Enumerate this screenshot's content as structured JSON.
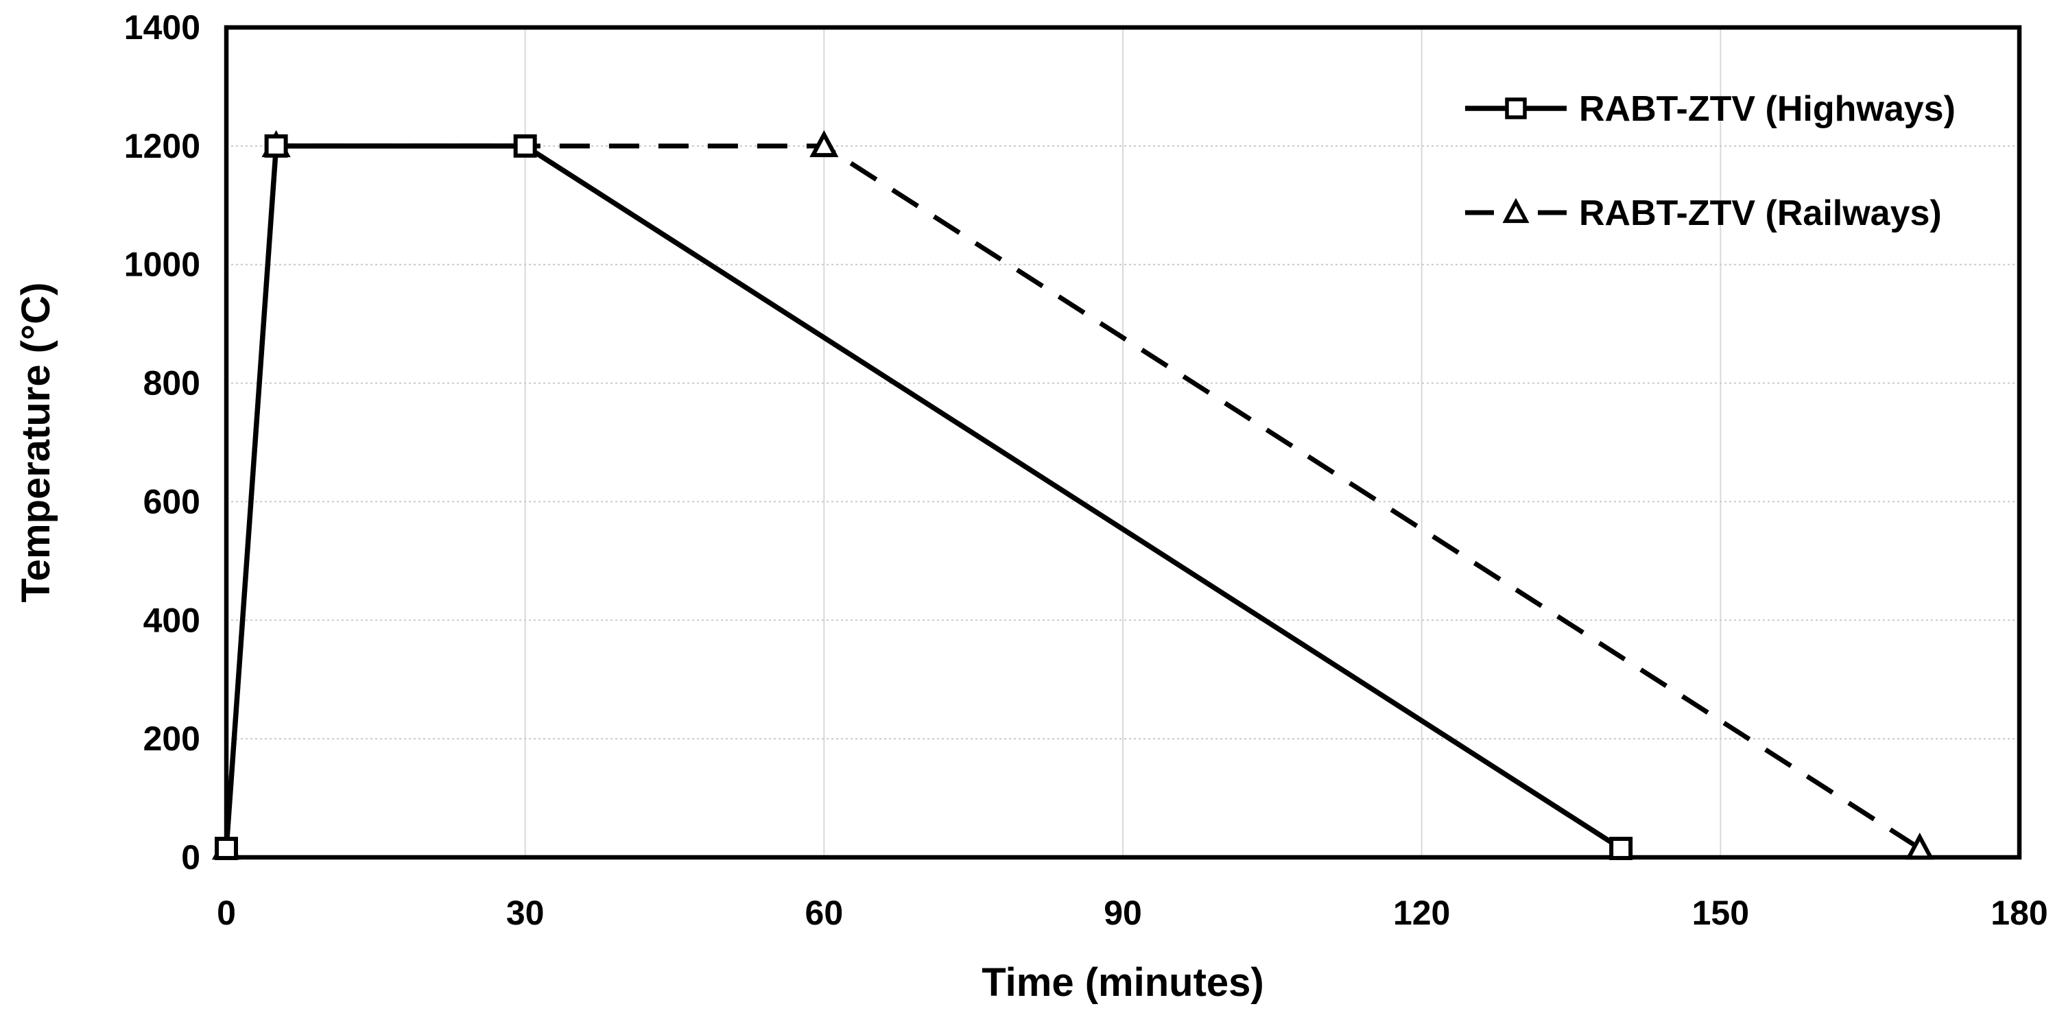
{
  "figure": {
    "background": "#ffffff"
  },
  "chart_data": {
    "type": "line",
    "title": "",
    "xlabel": "Time (minutes)",
    "ylabel": "Temperature (°C)",
    "xlim": [
      0,
      180
    ],
    "ylim": [
      0,
      1400
    ],
    "xticks": [
      0,
      30,
      60,
      90,
      120,
      150,
      180
    ],
    "yticks": [
      0,
      200,
      400,
      600,
      800,
      1000,
      1200,
      1400
    ],
    "grid": true,
    "legend": {
      "position": "top-right-inside",
      "entries": [
        "RABT-ZTV (Highways)",
        "RABT-ZTV (Railways)"
      ]
    },
    "series": [
      {
        "name": "RABT-ZTV (Highways)",
        "line_style": "solid",
        "marker": "square",
        "color": "#000000",
        "points": [
          [
            0,
            15
          ],
          [
            5,
            1200
          ],
          [
            30,
            1200
          ],
          [
            140,
            15
          ]
        ]
      },
      {
        "name": "RABT-ZTV (Railways)",
        "line_style": "dashed",
        "marker": "triangle",
        "color": "#000000",
        "points": [
          [
            0,
            15
          ],
          [
            5,
            1200
          ],
          [
            60,
            1200
          ],
          [
            170,
            15
          ]
        ]
      }
    ],
    "colors": {
      "line": "#000000",
      "grid_vertical": "#d9d9d9",
      "grid_horizontal": "#c9c9c9",
      "axis": "#000000",
      "text": "#000000",
      "background": "#ffffff"
    }
  }
}
